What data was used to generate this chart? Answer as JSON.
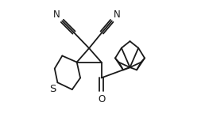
{
  "bg_color": "#ffffff",
  "line_color": "#1a1a1a",
  "lw": 1.3,
  "figsize": [
    2.58,
    1.63
  ],
  "dpi": 100,
  "label_S": "S",
  "label_O": "O",
  "label_N1": "N",
  "label_N2": "N",
  "font_size": 8.5,
  "xlim": [
    -0.05,
    1.05
  ],
  "ylim": [
    -0.05,
    1.05
  ]
}
